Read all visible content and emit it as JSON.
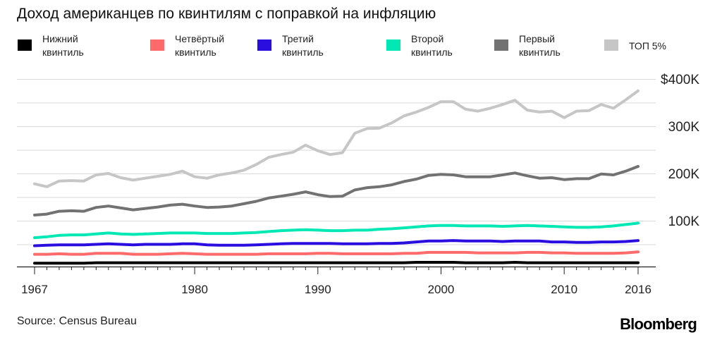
{
  "title": "Доход американцев по квинтилям с поправкой на инфляцию",
  "source": "Source: Census Bureau",
  "brand": "Bloomberg",
  "legend": [
    {
      "line1": "Нижний",
      "line2": "квинтиль",
      "color": "#000000"
    },
    {
      "line1": "Четвёртый",
      "line2": "квинтиль",
      "color": "#ff6b6b"
    },
    {
      "line1": "Третий",
      "line2": "квинтиль",
      "color": "#2a0ee0"
    },
    {
      "line1": "Второй",
      "line2": "квинтиль",
      "color": "#00e8b4"
    },
    {
      "line1": "Первый",
      "line2": "квинтиль",
      "color": "#727272"
    },
    {
      "line1": "ТОП 5%",
      "line2": "",
      "color": "#c6c6c6"
    }
  ],
  "chart_data": {
    "type": "line",
    "title": "Доход американцев по квинтилям с поправкой на инфляцию",
    "xlabel": "",
    "ylabel": "",
    "x_range": [
      1967,
      2016
    ],
    "ylim": [
      0,
      400000
    ],
    "x_ticks": [
      1967,
      1980,
      1990,
      2000,
      2010,
      2016
    ],
    "x_tick_labels": [
      "1967",
      "1980",
      "1990",
      "2000",
      "2010",
      "2016"
    ],
    "y_ticks": [
      100000,
      200000,
      300000,
      400000
    ],
    "y_tick_labels": [
      "100K",
      "200K",
      "300K",
      "$400K"
    ],
    "grid": "horizontal",
    "x": [
      1967,
      1968,
      1969,
      1970,
      1971,
      1972,
      1973,
      1974,
      1975,
      1976,
      1977,
      1978,
      1979,
      1980,
      1981,
      1982,
      1983,
      1984,
      1985,
      1986,
      1987,
      1988,
      1989,
      1990,
      1991,
      1992,
      1993,
      1994,
      1995,
      1996,
      1997,
      1998,
      1999,
      2000,
      2001,
      2002,
      2003,
      2004,
      2005,
      2006,
      2007,
      2008,
      2009,
      2010,
      2011,
      2012,
      2013,
      2014,
      2015,
      2016
    ],
    "series": [
      {
        "name": "Нижний квинтиль",
        "color": "#000000",
        "values": [
          10000,
          10000,
          10000,
          10000,
          10000,
          11000,
          11000,
          11000,
          11000,
          11000,
          11000,
          11000,
          11000,
          11000,
          11000,
          11000,
          11000,
          11000,
          11000,
          11000,
          11000,
          11000,
          11000,
          11000,
          11000,
          11000,
          11000,
          11000,
          11000,
          11000,
          11000,
          12000,
          12000,
          12000,
          12000,
          11000,
          11000,
          11000,
          11000,
          12000,
          11000,
          11000,
          11000,
          11000,
          11000,
          11000,
          11000,
          11000,
          11000,
          11000
        ]
      },
      {
        "name": "Четвёртый квинтиль",
        "color": "#ff6b6b",
        "values": [
          29000,
          29000,
          30000,
          29000,
          29000,
          31000,
          31000,
          31000,
          29000,
          29000,
          29000,
          30000,
          31000,
          30000,
          29000,
          29000,
          29000,
          29000,
          29000,
          30000,
          30000,
          30000,
          30000,
          31000,
          31000,
          30000,
          30000,
          30000,
          30000,
          30000,
          31000,
          31000,
          33000,
          33000,
          33000,
          33000,
          32000,
          32000,
          32000,
          32000,
          33000,
          33000,
          32000,
          32000,
          31000,
          31000,
          31000,
          31000,
          32000,
          34000
        ]
      },
      {
        "name": "Третий квинтиль",
        "color": "#2a0ee0",
        "values": [
          47000,
          48000,
          49000,
          49000,
          49000,
          50000,
          51000,
          50000,
          49000,
          50000,
          50000,
          50000,
          51000,
          51000,
          49000,
          48000,
          48000,
          48000,
          49000,
          50000,
          51000,
          52000,
          52000,
          52000,
          52000,
          51000,
          51000,
          51000,
          52000,
          52000,
          53000,
          55000,
          57000,
          57000,
          58000,
          57000,
          57000,
          57000,
          56000,
          57000,
          57000,
          57000,
          55000,
          55000,
          54000,
          54000,
          55000,
          55000,
          56000,
          58000
        ]
      },
      {
        "name": "Второй квинтиль",
        "color": "#00e8b4",
        "values": [
          64000,
          66000,
          69000,
          70000,
          70000,
          72000,
          74000,
          72000,
          71000,
          72000,
          73000,
          74000,
          74000,
          74000,
          73000,
          73000,
          73000,
          74000,
          75000,
          77000,
          79000,
          80000,
          81000,
          80000,
          79000,
          79000,
          80000,
          80000,
          82000,
          83000,
          85000,
          87000,
          89000,
          90000,
          90000,
          89000,
          89000,
          89000,
          88000,
          89000,
          90000,
          89000,
          88000,
          87000,
          86000,
          86000,
          87000,
          89000,
          92000,
          95000
        ]
      },
      {
        "name": "Первый квинтиль",
        "color": "#727272",
        "values": [
          112000,
          114000,
          120000,
          121000,
          120000,
          128000,
          131000,
          127000,
          123000,
          126000,
          129000,
          133000,
          135000,
          131000,
          128000,
          129000,
          131000,
          136000,
          141000,
          148000,
          152000,
          156000,
          161000,
          155000,
          151000,
          152000,
          165000,
          170000,
          172000,
          176000,
          183000,
          188000,
          196000,
          198000,
          197000,
          193000,
          193000,
          193000,
          197000,
          201000,
          195000,
          190000,
          191000,
          187000,
          189000,
          189000,
          199000,
          197000,
          205000,
          215000
        ]
      },
      {
        "name": "ТОП 5%",
        "color": "#c6c6c6",
        "values": [
          178000,
          172000,
          184000,
          185000,
          184000,
          197000,
          200000,
          191000,
          186000,
          190000,
          194000,
          198000,
          205000,
          193000,
          190000,
          197000,
          201000,
          207000,
          219000,
          234000,
          240000,
          245000,
          260000,
          248000,
          240000,
          244000,
          285000,
          295000,
          296000,
          307000,
          322000,
          330000,
          340000,
          352000,
          352000,
          336000,
          332000,
          338000,
          346000,
          355000,
          334000,
          330000,
          332000,
          318000,
          332000,
          333000,
          346000,
          338000,
          356000,
          375000
        ]
      }
    ]
  }
}
